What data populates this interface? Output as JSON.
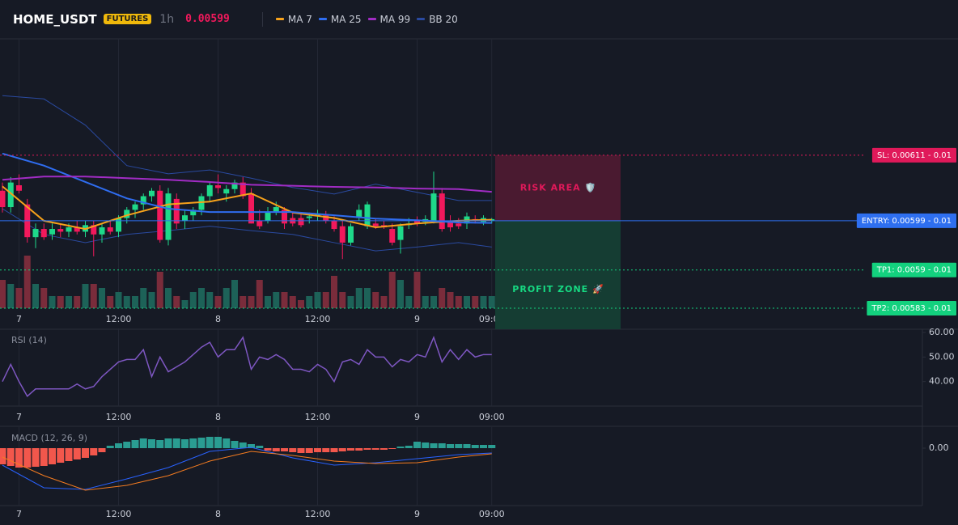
{
  "header": {
    "symbol": "HOME_USDT",
    "badge": "FUTURES",
    "interval": "1h",
    "price": "0.00599"
  },
  "chart_data": [
    {
      "type": "candlestick",
      "categories": [
        null,
        null,
        "7",
        null,
        null,
        null,
        null,
        null,
        null,
        null,
        null,
        null,
        null,
        null,
        "12:00",
        null,
        null,
        null,
        null,
        null,
        null,
        null,
        null,
        null,
        null,
        null,
        "8",
        null,
        null,
        null,
        null,
        null,
        null,
        null,
        null,
        null,
        null,
        null,
        "12:00",
        null,
        null,
        null,
        null,
        null,
        null,
        null,
        null,
        null,
        null,
        null,
        "9",
        null,
        null,
        null,
        null,
        null,
        null,
        null,
        null,
        "09:00"
      ],
      "open": [
        0.006045,
        0.006015,
        0.006055,
        0.00602,
        0.00596,
        0.005975,
        0.005965,
        0.005975,
        0.00597,
        0.005978,
        0.00597,
        0.005982,
        0.005965,
        0.005978,
        0.00597,
        0.005995,
        0.00601,
        0.00602,
        0.006035,
        0.006045,
        0.005955,
        0.00603,
        0.00599,
        0.006,
        0.00601,
        0.006035,
        0.006055,
        0.00604,
        0.006048,
        0.00606,
        0.00604,
        0.00599,
        0.00599,
        0.006005,
        0.00601,
        0.005995,
        0.005995,
        0.005995,
        0.005998,
        0.006,
        0.00599,
        0.00598,
        0.00595,
        0.005995,
        0.00598,
        0.005985,
        0.005982,
        0.005975,
        0.005955,
        0.005982,
        0.00599,
        0.005988,
        0.00599,
        0.00604,
        0.00599,
        0.005985,
        0.005985,
        0.005993,
        0.005988,
        0.00599
      ],
      "high": [
        0.00606,
        0.00607,
        0.006075,
        0.00603,
        0.005985,
        0.005985,
        0.005985,
        0.005985,
        0.005985,
        0.00599,
        0.00599,
        0.00599,
        0.005985,
        0.00599,
        0.006,
        0.006015,
        0.006025,
        0.00604,
        0.00605,
        0.006055,
        0.00605,
        0.00604,
        0.00601,
        0.006015,
        0.00604,
        0.00606,
        0.006075,
        0.006055,
        0.006065,
        0.00607,
        0.00605,
        0.00601,
        0.006015,
        0.006025,
        0.006015,
        0.006005,
        0.006005,
        0.006005,
        0.00601,
        0.006008,
        0.005998,
        0.00599,
        0.005985,
        0.00602,
        0.006025,
        0.005995,
        0.00599,
        0.005985,
        0.005985,
        0.005995,
        0.005998,
        0.006,
        0.00608,
        0.00605,
        0.006,
        0.005995,
        0.006005,
        0.006,
        0.006,
        0.005995
      ],
      "low": [
        0.006005,
        0.006005,
        0.00604,
        0.00595,
        0.00594,
        0.005955,
        0.005955,
        0.00596,
        0.00596,
        0.005965,
        0.00596,
        0.005925,
        0.00595,
        0.005965,
        0.00596,
        0.005985,
        0.005995,
        0.00601,
        0.006025,
        0.00595,
        0.005945,
        0.005975,
        0.005975,
        0.00599,
        0.006,
        0.006025,
        0.00604,
        0.006025,
        0.00604,
        0.00603,
        0.005985,
        0.005975,
        0.005985,
        0.006,
        0.005975,
        0.00598,
        0.005978,
        0.005985,
        0.00599,
        0.005985,
        0.00597,
        0.00592,
        0.005945,
        0.00599,
        0.005975,
        0.005975,
        0.005975,
        0.005945,
        0.00593,
        0.005975,
        0.00598,
        0.005982,
        0.005985,
        0.00597,
        0.00597,
        0.005975,
        0.005975,
        0.005985,
        0.005982,
        0.005985
      ],
      "close": [
        0.006015,
        0.00606,
        0.006045,
        0.00596,
        0.005975,
        0.00596,
        0.005975,
        0.00597,
        0.005978,
        0.00597,
        0.005982,
        0.005965,
        0.005978,
        0.00597,
        0.005995,
        0.00601,
        0.00602,
        0.006035,
        0.006045,
        0.005955,
        0.00604,
        0.005985,
        0.006,
        0.00601,
        0.006035,
        0.006055,
        0.00605,
        0.006048,
        0.00606,
        0.006035,
        0.005985,
        0.00598,
        0.006005,
        0.006015,
        0.005985,
        0.005985,
        0.005982,
        0.005998,
        0.006002,
        0.00599,
        0.005975,
        0.00595,
        0.00598,
        0.00601,
        0.00602,
        0.00598,
        0.005978,
        0.00595,
        0.00598,
        0.005985,
        0.005985,
        0.005993,
        0.00604,
        0.005975,
        0.005978,
        0.00598,
        0.005998,
        0.00599,
        0.005995,
        0.005993
      ],
      "up_color": "#1ed98a",
      "down_color": "#f2195c",
      "ylim": [
        0.00583,
        0.00632
      ],
      "volume": {
        "values": [
          35,
          30,
          25,
          65,
          30,
          25,
          15,
          15,
          15,
          15,
          30,
          30,
          25,
          15,
          20,
          15,
          15,
          25,
          20,
          45,
          25,
          15,
          10,
          20,
          25,
          20,
          15,
          25,
          35,
          15,
          15,
          35,
          15,
          20,
          20,
          15,
          10,
          15,
          20,
          20,
          40,
          20,
          15,
          25,
          25,
          20,
          15,
          45,
          35,
          15,
          45,
          15,
          15,
          25,
          20,
          15,
          15,
          15,
          15,
          15
        ],
        "ylim": [
          0,
          100
        ],
        "up_color": "#1d6258",
        "down_color": "#7a2c3b"
      },
      "series": [
        {
          "name": "MA 7",
          "color": "#f7a21b",
          "x": [
            0,
            5,
            10,
            15,
            20,
            25,
            30,
            35,
            40,
            45,
            50,
            55,
            59
          ],
          "values": [
            0.006053,
            0.00599,
            0.005975,
            0.006,
            0.00602,
            0.006025,
            0.00604,
            0.006005,
            0.005995,
            0.005978,
            0.005985,
            0.00599,
            0.005992
          ]
        },
        {
          "name": "MA 25",
          "color": "#2f6df0",
          "x": [
            0,
            5,
            10,
            15,
            20,
            25,
            30,
            35,
            40,
            45,
            50,
            55,
            59
          ],
          "values": [
            0.006113,
            0.006091,
            0.006061,
            0.006031,
            0.006012,
            0.006006,
            0.006006,
            0.006006,
            0.006,
            0.005994,
            0.005991,
            0.005987,
            0.005986
          ]
        },
        {
          "name": "MA 99",
          "color": "#a12cc4",
          "x": [
            0,
            5,
            10,
            15,
            20,
            25,
            30,
            35,
            40,
            45,
            50,
            55,
            59
          ],
          "values": [
            0.006065,
            0.006071,
            0.006071,
            0.006068,
            0.006065,
            0.006061,
            0.006056,
            0.006054,
            0.006052,
            0.006051,
            0.006049,
            0.006048,
            0.006043
          ]
        },
        {
          "name": "BB 20",
          "color": "#2a4aa0",
          "x": [
            0,
            5,
            10,
            15,
            20,
            25,
            30,
            35,
            40,
            45,
            50,
            55,
            59
          ],
          "upper": [
            0.006219,
            0.006213,
            0.006165,
            0.006091,
            0.006076,
            0.006083,
            0.006068,
            0.006051,
            0.006039,
            0.006057,
            0.006042,
            0.006027,
            0.006027
          ],
          "lower": [
            0.006012,
            0.005965,
            0.00595,
            0.005965,
            0.005972,
            0.00598,
            0.005972,
            0.005965,
            0.00595,
            0.005935,
            0.005942,
            0.00595,
            0.005942
          ]
        }
      ],
      "orders": [
        {
          "label": "SL: 0.00611 - 0.01",
          "price": 0.00611,
          "color": "#e0195a",
          "style": "dotted"
        },
        {
          "label": "ENTRY: 0.00599 - 0.01",
          "price": 0.00599,
          "color": "#2e6ff0",
          "style": "solid"
        },
        {
          "label": "TP1: 0.0059 - 0.01",
          "price": 0.0059,
          "color": "#13d17e",
          "style": "dotted"
        },
        {
          "label": "TP2: 0.00583 - 0.01",
          "price": 0.00583,
          "color": "#13d17e",
          "style": "dotted"
        }
      ],
      "zones": [
        {
          "label": "RISK AREA 🛡️",
          "color": "#e0195a",
          "fill": "#4a1a30"
        },
        {
          "label": "PROFIT ZONE 🚀",
          "color": "#16d982",
          "fill": "#153d33"
        }
      ]
    },
    {
      "type": "line",
      "title": "RSI (14)",
      "color": "#7e57c2",
      "values": [
        40,
        47,
        40,
        34,
        37,
        37,
        37,
        37,
        37,
        39,
        37,
        38,
        42,
        45,
        48,
        49,
        49,
        53,
        42,
        50,
        44,
        46,
        48,
        51,
        54,
        56,
        50,
        53,
        53,
        58,
        45,
        50,
        49,
        51,
        49,
        45,
        45,
        44,
        47,
        45,
        40,
        48,
        49,
        47,
        53,
        50,
        50,
        46,
        49,
        48,
        51,
        50,
        58,
        48,
        53,
        49,
        53,
        50,
        51,
        51
      ],
      "ylim": [
        30,
        61
      ],
      "yticks": [
        {
          "value": 60,
          "label": "60.00"
        },
        {
          "value": 50,
          "label": "50.00"
        },
        {
          "value": 40,
          "label": "40.00"
        }
      ]
    },
    {
      "type": "macd",
      "title": "MACD (12, 26, 9)",
      "histogram": {
        "values": [
          -2e-05,
          -2.2e-05,
          -2.4e-05,
          -2.4e-05,
          -2.3e-05,
          -2.2e-05,
          -2e-05,
          -1.8e-05,
          -1.6e-05,
          -1.4e-05,
          -1.2e-05,
          -9e-06,
          -5e-06,
          3e-06,
          6e-06,
          8e-06,
          1e-05,
          1.2e-05,
          1.1e-05,
          1e-05,
          1.2e-05,
          1.2e-05,
          1.1e-05,
          1.2e-05,
          1.3e-05,
          1.4e-05,
          1.4e-05,
          1.2e-05,
          9e-06,
          7e-06,
          5e-06,
          3e-06,
          -3e-06,
          -4e-06,
          -4e-06,
          -5e-06,
          -6e-06,
          -6e-06,
          -5e-06,
          -5e-06,
          -5e-06,
          -4e-06,
          -3e-06,
          -3e-06,
          -2e-06,
          -2e-06,
          -2e-06,
          -1e-06,
          2e-06,
          3e-06,
          8e-06,
          7e-06,
          6e-06,
          6e-06,
          5e-06,
          5e-06,
          5e-06,
          4e-06,
          4e-06,
          4e-06
        ],
        "up_color": "#2a9d92",
        "down_color": "#f2574c"
      },
      "series": [
        {
          "color": "#2962ff",
          "x": [
            0,
            5,
            10,
            15,
            20,
            25,
            30,
            35,
            40,
            45,
            50,
            55,
            59
          ],
          "values": [
            -2.1e-05,
            -4.9e-05,
            -5.1e-05,
            -3.8e-05,
            -2.4e-05,
            -4e-06,
            1e-06,
            -1.2e-05,
            -2.1e-05,
            -1.8e-05,
            -1.3e-05,
            -8e-06,
            -6e-06
          ]
        },
        {
          "color": "#f57c20",
          "x": [
            0,
            5,
            10,
            15,
            20,
            25,
            30,
            35,
            40,
            45,
            50,
            55,
            59
          ],
          "values": [
            -1.1e-05,
            -3.4e-05,
            -5.2e-05,
            -4.6e-05,
            -3.4e-05,
            -1.6e-05,
            -4e-06,
            -9e-06,
            -1.6e-05,
            -1.9e-05,
            -1.8e-05,
            -1.1e-05,
            -7e-06
          ]
        }
      ],
      "ylim": [
        -7.1e-05,
        2.4e-05
      ],
      "yticks": [
        {
          "value": 0,
          "label": "0.00"
        }
      ]
    }
  ]
}
